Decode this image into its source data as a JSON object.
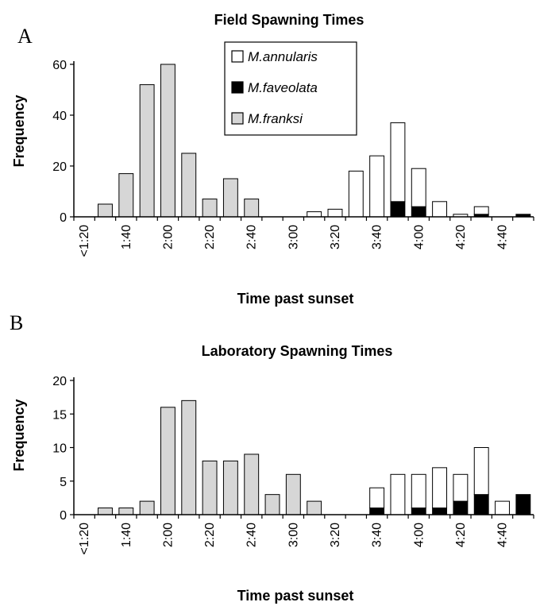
{
  "colors": {
    "annularis": "#ffffff",
    "faveolata": "#000000",
    "franksi": "#d6d6d6",
    "stroke": "#000000"
  },
  "legend": [
    {
      "key": "annularis",
      "label": "M.annularis"
    },
    {
      "key": "faveolata",
      "label": "M.faveolata"
    },
    {
      "key": "franksi",
      "label": "M.franksi"
    }
  ],
  "chart_data": [
    {
      "type": "bar",
      "panel": "A",
      "title": "Field Spawning Times",
      "xlabel": "Time past sunset",
      "ylabel": "Frequency",
      "ylim": [
        0,
        60
      ],
      "yticks": [
        0,
        20,
        40,
        60
      ],
      "categories": [
        "<1:20",
        "1:30",
        "1:40",
        "1:50",
        "2:00",
        "2:10",
        "2:20",
        "2:30",
        "2:40",
        "2:50",
        "3:00",
        "3:10",
        "3:20",
        "3:30",
        "3:40",
        "3:50",
        "4:00",
        "4:10",
        "4:20",
        "4:30",
        "4:40",
        "4:50"
      ],
      "xtick_labels": [
        "<1:20",
        "1:40",
        "2:00",
        "2:20",
        "2:40",
        "3:00",
        "3:20",
        "3:40",
        "4:00",
        "4:20",
        "4:40"
      ],
      "stacked": true,
      "series": [
        {
          "name": "M.franksi",
          "key": "franksi",
          "values": [
            0,
            5,
            17,
            52,
            60,
            25,
            7,
            15,
            7,
            0,
            0,
            0,
            0,
            0,
            0,
            0,
            0,
            0,
            0,
            0,
            0,
            0
          ]
        },
        {
          "name": "M.faveolata",
          "key": "faveolata",
          "values": [
            0,
            0,
            0,
            0,
            0,
            0,
            0,
            0,
            0,
            0,
            0,
            0,
            0,
            0,
            0,
            6,
            4,
            0,
            0,
            1,
            0,
            1
          ]
        },
        {
          "name": "M.annularis",
          "key": "annularis",
          "values": [
            0,
            0,
            0,
            0,
            0,
            0,
            0,
            0,
            0,
            0,
            0,
            2,
            3,
            18,
            24,
            31,
            15,
            6,
            1,
            3,
            0,
            0
          ]
        }
      ]
    },
    {
      "type": "bar",
      "panel": "B",
      "title": "Laboratory Spawning Times",
      "xlabel": "Time past sunset",
      "ylabel": "Frequency",
      "ylim": [
        0,
        20
      ],
      "yticks": [
        0,
        5,
        10,
        15,
        20
      ],
      "categories": [
        "<1:20",
        "1:30",
        "1:40",
        "1:50",
        "2:00",
        "2:10",
        "2:20",
        "2:30",
        "2:40",
        "2:50",
        "3:00",
        "3:10",
        "3:20",
        "3:30",
        "3:40",
        "3:50",
        "4:00",
        "4:10",
        "4:20",
        "4:30",
        "4:40",
        "4:50"
      ],
      "xtick_labels": [
        "<1:20",
        "1:40",
        "2:00",
        "2:20",
        "2:40",
        "3:00",
        "3:20",
        "3:40",
        "4:00",
        "4:20",
        "4:40"
      ],
      "stacked": true,
      "series": [
        {
          "name": "M.franksi",
          "key": "franksi",
          "values": [
            0,
            1,
            1,
            2,
            16,
            17,
            8,
            8,
            9,
            3,
            6,
            2,
            0,
            0,
            0,
            0,
            0,
            0,
            0,
            0,
            0,
            0
          ]
        },
        {
          "name": "M.faveolata",
          "key": "faveolata",
          "values": [
            0,
            0,
            0,
            0,
            0,
            0,
            0,
            0,
            0,
            0,
            0,
            0,
            0,
            0,
            1,
            0,
            1,
            1,
            2,
            3,
            0,
            3
          ]
        },
        {
          "name": "M.annularis",
          "key": "annularis",
          "values": [
            0,
            0,
            0,
            0,
            0,
            0,
            0,
            0,
            0,
            0,
            0,
            0,
            0,
            0,
            3,
            6,
            5,
            6,
            4,
            7,
            2,
            0
          ]
        }
      ]
    }
  ]
}
